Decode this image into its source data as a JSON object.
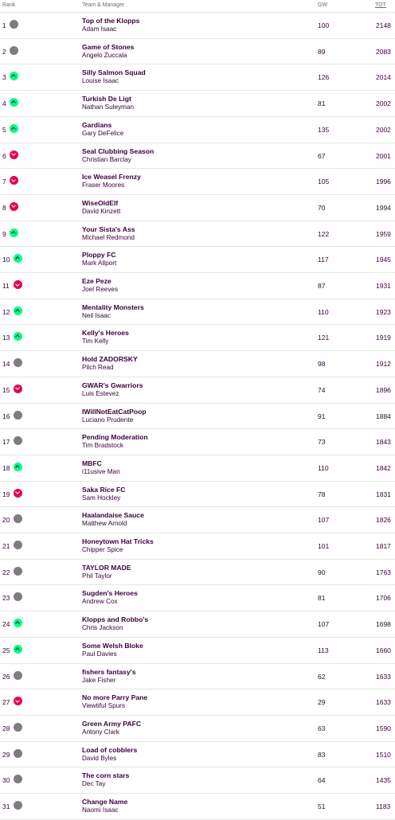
{
  "header": {
    "rank": "Rank",
    "team_manager": "Team & Manager",
    "gw": "GW",
    "tot": "TOT"
  },
  "movement_icons": {
    "same": "grey-circle-icon",
    "up": "green-chevron-up-icon",
    "down": "red-chevron-down-icon"
  },
  "colors": {
    "text": "#37003c",
    "up": "#00ff87",
    "down": "#e90052",
    "same": "#7d7d7d"
  },
  "rows": [
    {
      "rank": "1",
      "movement": "same",
      "team": "Top of the Klopps",
      "manager": "Adam Isaac",
      "gw": "100",
      "tot": "2148"
    },
    {
      "rank": "2",
      "movement": "same",
      "team": "Game of Stones",
      "manager": "Angelo Zuccala",
      "gw": "89",
      "tot": "2083"
    },
    {
      "rank": "3",
      "movement": "up",
      "team": "Silly Salmon Squad",
      "manager": "Louise Isaac",
      "gw": "126",
      "tot": "2014"
    },
    {
      "rank": "4",
      "movement": "up",
      "team": "Turkish De Ligt",
      "manager": "Nathan Suleyman",
      "gw": "81",
      "tot": "2002"
    },
    {
      "rank": "5",
      "movement": "up",
      "team": "Gardians",
      "manager": "Gary DeFelice",
      "gw": "135",
      "tot": "2002"
    },
    {
      "rank": "6",
      "movement": "down",
      "team": "Seal Clubbing Season",
      "manager": "Christian Barclay",
      "gw": "67",
      "tot": "2001"
    },
    {
      "rank": "7",
      "movement": "down",
      "team": "Ice Weasel Frenzy",
      "manager": "Fraser Moores",
      "gw": "105",
      "tot": "1996"
    },
    {
      "rank": "8",
      "movement": "down",
      "team": "WiseOldElf",
      "manager": "David Kinzett",
      "gw": "70",
      "tot": "1994"
    },
    {
      "rank": "9",
      "movement": "up",
      "team": "Your Sista's Ass",
      "manager": "Michael Redmond",
      "gw": "122",
      "tot": "1959"
    },
    {
      "rank": "10",
      "movement": "up",
      "team": "Ploppy FC",
      "manager": "Mark Allport",
      "gw": "117",
      "tot": "1945"
    },
    {
      "rank": "11",
      "movement": "down",
      "team": "Eze Peze",
      "manager": "Joel Reeves",
      "gw": "87",
      "tot": "1931"
    },
    {
      "rank": "12",
      "movement": "up",
      "team": "Mentality Monsters",
      "manager": "Neil Isaac",
      "gw": "110",
      "tot": "1923"
    },
    {
      "rank": "13",
      "movement": "up",
      "team": "Kelly's Heroes",
      "manager": "Tim Kelly",
      "gw": "121",
      "tot": "1919"
    },
    {
      "rank": "14",
      "movement": "same",
      "team": "Hold ZADORSKY",
      "manager": "Pilch Read",
      "gw": "98",
      "tot": "1912"
    },
    {
      "rank": "15",
      "movement": "down",
      "team": "GWAR's Gwarriors",
      "manager": "Luis Estevez",
      "gw": "74",
      "tot": "1896"
    },
    {
      "rank": "16",
      "movement": "same",
      "team": "IWillNotEatCatPoop",
      "manager": "Luciano Prudente",
      "gw": "91",
      "tot": "1884"
    },
    {
      "rank": "17",
      "movement": "same",
      "team": "Pending Moderation",
      "manager": "Tim Bradstock",
      "gw": "73",
      "tot": "1843"
    },
    {
      "rank": "18",
      "movement": "up",
      "team": "MBFC",
      "manager": "i11usive Man",
      "gw": "110",
      "tot": "1842"
    },
    {
      "rank": "19",
      "movement": "down",
      "team": "Saka Rice FC",
      "manager": "Sam Hockley",
      "gw": "78",
      "tot": "1831"
    },
    {
      "rank": "20",
      "movement": "same",
      "team": "Haalandaise Sauce",
      "manager": "Matthew Arnold",
      "gw": "107",
      "tot": "1826"
    },
    {
      "rank": "21",
      "movement": "same",
      "team": "Honeytown Hat Tricks",
      "manager": "Chipper Spice",
      "gw": "101",
      "tot": "1817"
    },
    {
      "rank": "22",
      "movement": "same",
      "team": "TAYLOR MADE",
      "manager": "Phil Taylor",
      "gw": "90",
      "tot": "1763"
    },
    {
      "rank": "23",
      "movement": "same",
      "team": "Sugden's Heroes",
      "manager": "Andrew Cox",
      "gw": "81",
      "tot": "1706"
    },
    {
      "rank": "24",
      "movement": "up",
      "team": "Klopps and Robbo's",
      "manager": "Chris Jackson",
      "gw": "107",
      "tot": "1698"
    },
    {
      "rank": "25",
      "movement": "up",
      "team": "Some Welsh Bloke",
      "manager": "Paul Davies",
      "gw": "113",
      "tot": "1660"
    },
    {
      "rank": "26",
      "movement": "same",
      "team": "fishers fantasy's",
      "manager": "Jake Fisher",
      "gw": "62",
      "tot": "1633"
    },
    {
      "rank": "27",
      "movement": "down",
      "team": "No more Parry Pane",
      "manager": "Viewtiful Spurs",
      "gw": "29",
      "tot": "1633"
    },
    {
      "rank": "28",
      "movement": "same",
      "team": "Green Army PAFC",
      "manager": "Antony Clark",
      "gw": "63",
      "tot": "1590"
    },
    {
      "rank": "29",
      "movement": "same",
      "team": "Load of cobblers",
      "manager": "David Byles",
      "gw": "83",
      "tot": "1510"
    },
    {
      "rank": "30",
      "movement": "same",
      "team": "The corn stars",
      "manager": "Dec Tay",
      "gw": "64",
      "tot": "1435"
    },
    {
      "rank": "31",
      "movement": "same",
      "team": "Change Name",
      "manager": "Naomi Isaac",
      "gw": "51",
      "tot": "1183"
    }
  ]
}
